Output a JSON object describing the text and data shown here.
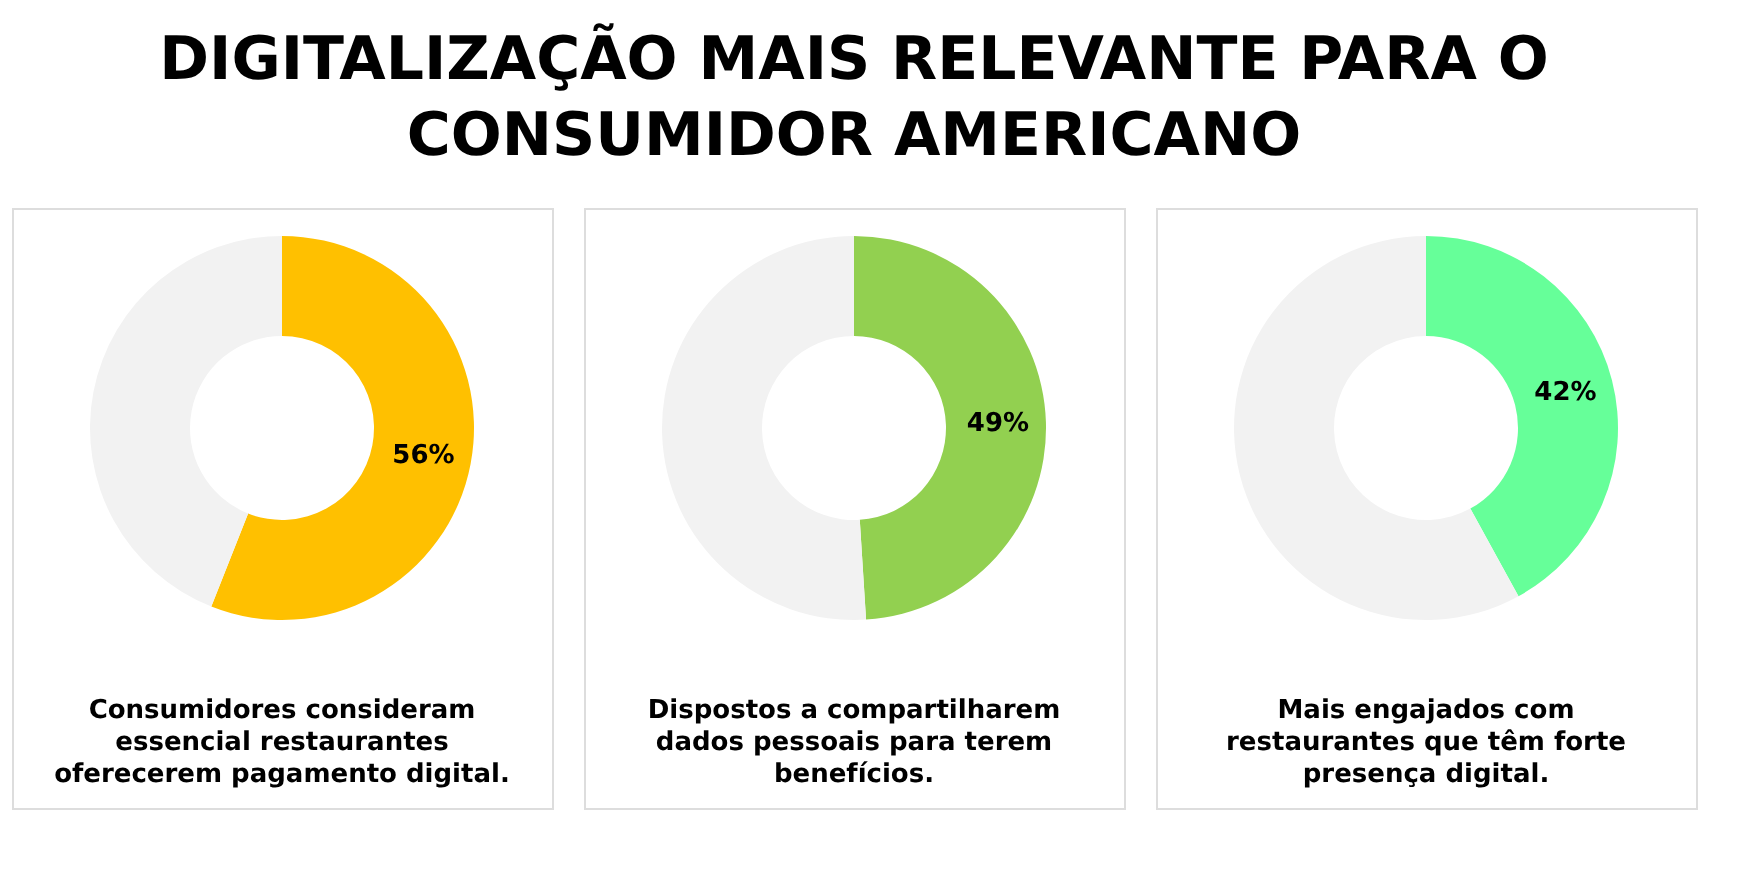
{
  "chart_data": [
    {
      "type": "donut",
      "title": "DIGITALIZAÇÃO MAIS RELEVANTE PARA O\nCONSUMIDOR AMERICANO",
      "categories": [
        null,
        null
      ],
      "values": [
        56,
        44
      ],
      "colors": [
        "#ffc000",
        "#f2f2f2"
      ],
      "value_labels": [
        "56%",
        null
      ],
      "annotations": [
        "Consumidores consideram\nessencial restaurantes\noferecerem pagamento digital."
      ],
      "legend": false
    },
    {
      "type": "donut",
      "categories": [
        null,
        null
      ],
      "values": [
        49,
        51
      ],
      "colors": [
        "#92d050",
        "#f2f2f2"
      ],
      "value_labels": [
        "49%",
        null
      ],
      "annotations": [
        "Dispostos a compartilharem\ndados pessoais para terem\nbenefícios."
      ],
      "legend": false
    },
    {
      "type": "donut",
      "categories": [
        null,
        null
      ],
      "values": [
        42,
        58
      ],
      "colors": [
        "#66ff99",
        "#f2f2f2"
      ],
      "value_labels": [
        "42%",
        null
      ],
      "annotations": [
        "Mais engajados com\nrestaurantes que têm forte\npresença digital."
      ],
      "legend": false
    }
  ]
}
